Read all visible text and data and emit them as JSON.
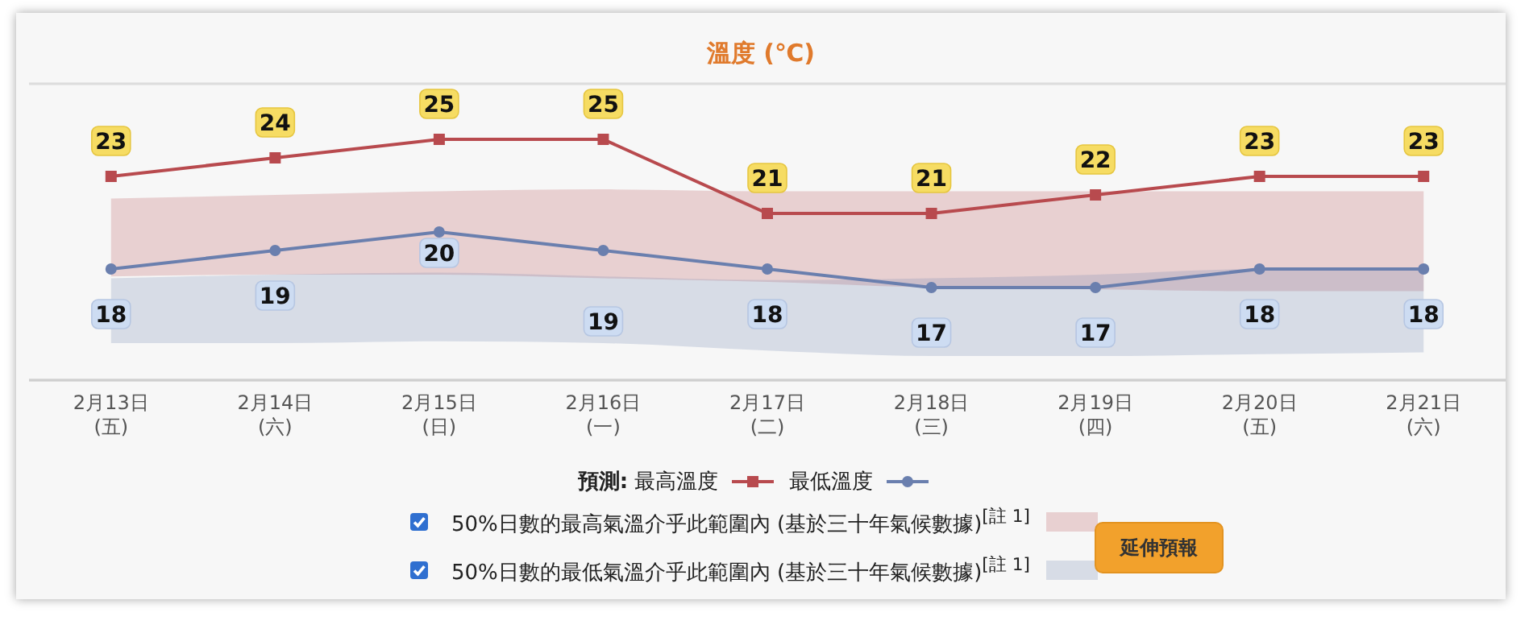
{
  "chart_data": {
    "type": "line",
    "title": "溫度 (℃)",
    "legend_title": "預測:",
    "legend": "bottom",
    "grid": "y",
    "tick_labels": "x",
    "data_labels": true,
    "categories": [
      "2月13日\n(五)",
      "2月14日\n(六)",
      "2月15日\n(日)",
      "2月16日\n(一)",
      "2月17日\n(二)",
      "2月18日\n(三)",
      "2月19日\n(四)",
      "2月20日\n(五)",
      "2月21日\n(六)"
    ],
    "ylim": [
      12,
      28
    ],
    "series": [
      {
        "name": "最高溫度",
        "color": "#b84a4e",
        "marker": "square",
        "values": [
          23,
          24,
          25,
          25,
          21,
          21,
          22,
          23,
          23
        ],
        "lower": [
          17.6,
          17.7,
          17.7,
          17.5,
          17.3,
          17.0,
          16.9,
          16.8,
          16.8
        ],
        "upper": [
          21.8,
          22.0,
          22.2,
          22.3,
          22.2,
          22.2,
          22.2,
          22.2,
          22.2
        ]
      },
      {
        "name": "最低溫度",
        "color": "#6a7fae",
        "marker": "circle",
        "values": [
          18,
          19,
          20,
          19,
          18,
          17,
          17,
          18,
          18
        ],
        "lower": [
          14.0,
          14.0,
          14.1,
          14.0,
          13.6,
          13.3,
          13.3,
          13.4,
          13.5
        ],
        "upper": [
          17.5,
          17.7,
          17.8,
          17.6,
          17.4,
          17.5,
          17.7,
          18.0,
          18.0
        ]
      }
    ],
    "annotations": [
      "50%日數的最高氣溫介乎此範圍內 (基於三十年氣候數據)$^{[註 1]}$",
      "50%日數的最低氣溫介乎此範圍內 (基於三十年氣候數據)$^{[註 1]}$",
      "延伸預報"
    ]
  }
}
